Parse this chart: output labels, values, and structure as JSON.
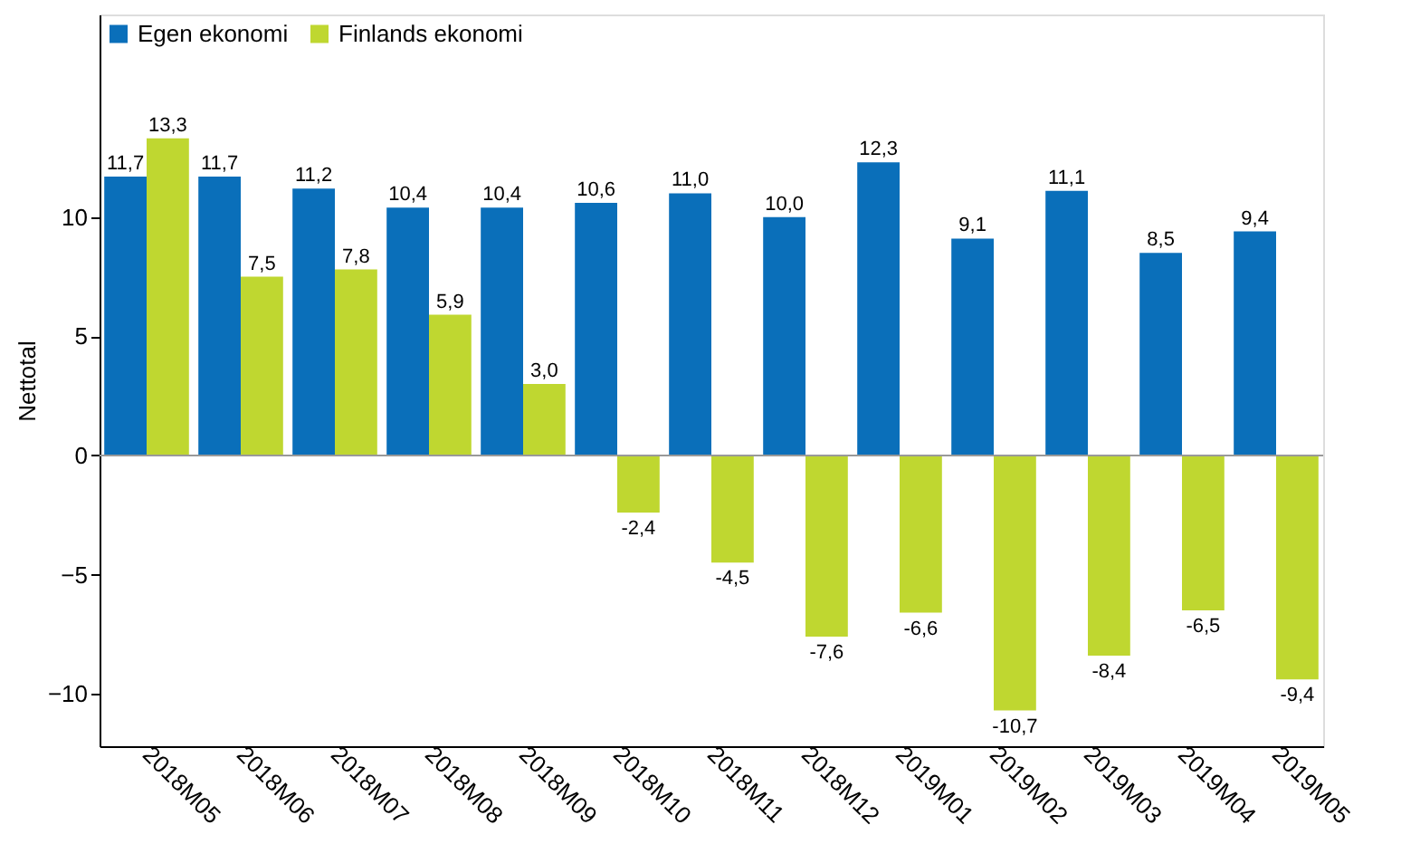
{
  "chart_data": {
    "type": "bar",
    "ylabel": "Nettotal",
    "categories": [
      "2018M05",
      "2018M06",
      "2018M07",
      "2018M08",
      "2018M09",
      "2018M10",
      "2018M11",
      "2018M12",
      "2019M01",
      "2019M02",
      "2019M03",
      "2019M04",
      "2019M05"
    ],
    "series": [
      {
        "name": "Egen ekonomi",
        "color": "#0a6fba",
        "values": [
          11.7,
          11.7,
          11.2,
          10.4,
          10.4,
          10.6,
          11.0,
          10.0,
          12.3,
          9.1,
          11.1,
          8.5,
          9.4
        ],
        "value_labels": [
          "11,7",
          "11,7",
          "11,2",
          "10,4",
          "10,4",
          "10,6",
          "11,0",
          "10,0",
          "12,3",
          "9,1",
          "11,1",
          "8,5",
          "9,4"
        ]
      },
      {
        "name": "Finlands ekonomi",
        "color": "#bfd730",
        "values": [
          13.3,
          7.5,
          7.8,
          5.9,
          3.0,
          -2.4,
          -4.5,
          -7.6,
          -6.6,
          -10.7,
          -8.4,
          -6.5,
          -9.4
        ],
        "value_labels": [
          "13,3",
          "7,5",
          "7,8",
          "5,9",
          "3,0",
          "-2,4",
          "-4,5",
          "-7,6",
          "-6,6",
          "-10,7",
          "-8,4",
          "-6,5",
          "-9,4"
        ]
      }
    ],
    "ylim": [
      -12.2,
      18.5
    ],
    "yticks": [
      -10,
      -5,
      0,
      5,
      10
    ],
    "grid": false,
    "legend": "top left",
    "ref_lines": [
      {
        "axis": "y",
        "value": 0,
        "color": "#999999"
      }
    ]
  }
}
